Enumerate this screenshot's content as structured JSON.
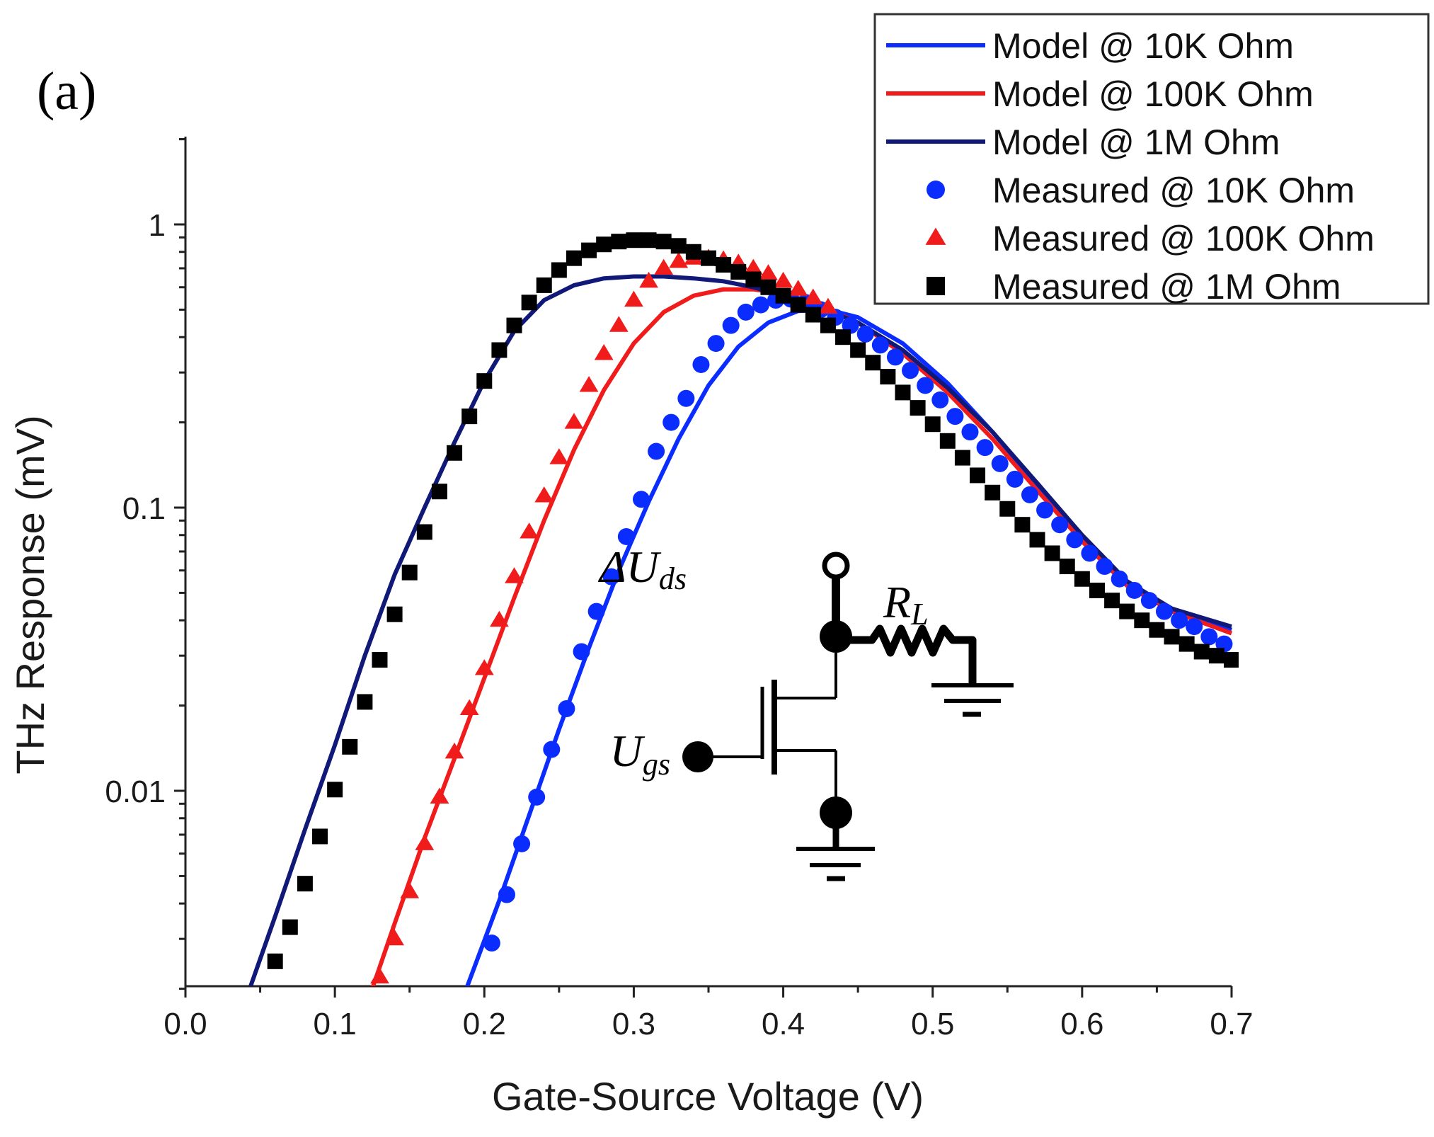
{
  "panel_label": "(a)",
  "chart_data": {
    "type": "line",
    "title": "",
    "xlabel": "Gate-Source Voltage (V)",
    "ylabel": "THz Response (mV)",
    "xlim": [
      0.0,
      0.7
    ],
    "ylim": [
      0.002,
      2.0
    ],
    "yscale": "log",
    "x_ticks": [
      0.0,
      0.1,
      0.2,
      0.3,
      0.4,
      0.5,
      0.6,
      0.7
    ],
    "x_tick_labels": [
      "0.0",
      "0.1",
      "0.2",
      "0.3",
      "0.4",
      "0.5",
      "0.6",
      "0.7"
    ],
    "y_ticks": [
      0.01,
      0.1,
      1
    ],
    "y_tick_labels": [
      "0.01",
      "0.1",
      "1"
    ],
    "grid": false,
    "legend_position": "top-right",
    "series": [
      {
        "name": "Model @ 10K Ohm",
        "kind": "line",
        "color": "#0a2cff",
        "x": [
          0.188,
          0.21,
          0.23,
          0.25,
          0.27,
          0.29,
          0.31,
          0.33,
          0.35,
          0.37,
          0.39,
          0.41,
          0.43,
          0.45,
          0.48,
          0.51,
          0.54,
          0.57,
          0.6,
          0.63,
          0.66,
          0.7
        ],
        "y": [
          0.002,
          0.0041,
          0.0082,
          0.0165,
          0.032,
          0.06,
          0.105,
          0.175,
          0.27,
          0.37,
          0.45,
          0.495,
          0.5,
          0.47,
          0.38,
          0.275,
          0.185,
          0.12,
          0.079,
          0.054,
          0.044,
          0.037
        ]
      },
      {
        "name": "Model @ 100K Ohm",
        "kind": "line",
        "color": "#f01c1c",
        "x": [
          0.125,
          0.14,
          0.16,
          0.18,
          0.2,
          0.22,
          0.24,
          0.26,
          0.28,
          0.3,
          0.32,
          0.34,
          0.36,
          0.38,
          0.4,
          0.42,
          0.45,
          0.48,
          0.51,
          0.54,
          0.57,
          0.6,
          0.63,
          0.66,
          0.7
        ],
        "y": [
          0.002,
          0.0034,
          0.0068,
          0.013,
          0.025,
          0.048,
          0.09,
          0.16,
          0.26,
          0.38,
          0.49,
          0.56,
          0.59,
          0.59,
          0.57,
          0.53,
          0.45,
          0.35,
          0.255,
          0.175,
          0.115,
          0.076,
          0.053,
          0.043,
          0.036
        ]
      },
      {
        "name": "Model @ 1M Ohm",
        "kind": "line",
        "color": "#101878",
        "x": [
          0.043,
          0.06,
          0.08,
          0.1,
          0.12,
          0.14,
          0.16,
          0.18,
          0.2,
          0.22,
          0.24,
          0.26,
          0.28,
          0.3,
          0.32,
          0.34,
          0.36,
          0.38,
          0.4,
          0.42,
          0.45,
          0.48,
          0.51,
          0.54,
          0.57,
          0.6,
          0.63,
          0.66,
          0.7
        ],
        "y": [
          0.002,
          0.0036,
          0.0073,
          0.0145,
          0.03,
          0.058,
          0.1,
          0.17,
          0.28,
          0.42,
          0.54,
          0.61,
          0.645,
          0.655,
          0.655,
          0.645,
          0.63,
          0.6,
          0.56,
          0.52,
          0.45,
          0.36,
          0.265,
          0.185,
          0.122,
          0.08,
          0.055,
          0.044,
          0.038
        ]
      },
      {
        "name": "Measured @ 10K Ohm",
        "kind": "scatter",
        "marker": "circle",
        "color": "#0a2cff",
        "x": [
          0.205,
          0.215,
          0.225,
          0.235,
          0.245,
          0.255,
          0.265,
          0.275,
          0.285,
          0.295,
          0.305,
          0.315,
          0.325,
          0.335,
          0.345,
          0.355,
          0.365,
          0.375,
          0.385,
          0.395,
          0.405,
          0.415,
          0.425,
          0.435,
          0.445,
          0.455,
          0.465,
          0.475,
          0.485,
          0.495,
          0.505,
          0.515,
          0.525,
          0.535,
          0.545,
          0.555,
          0.565,
          0.575,
          0.585,
          0.595,
          0.605,
          0.615,
          0.625,
          0.635,
          0.645,
          0.655,
          0.665,
          0.675,
          0.685,
          0.695
        ],
        "y": [
          0.0029,
          0.0043,
          0.0065,
          0.0095,
          0.014,
          0.0195,
          0.031,
          0.043,
          0.057,
          0.079,
          0.107,
          0.158,
          0.2,
          0.243,
          0.32,
          0.38,
          0.44,
          0.49,
          0.52,
          0.54,
          0.545,
          0.53,
          0.5,
          0.47,
          0.44,
          0.41,
          0.375,
          0.34,
          0.305,
          0.27,
          0.24,
          0.21,
          0.185,
          0.163,
          0.143,
          0.126,
          0.111,
          0.098,
          0.087,
          0.077,
          0.069,
          0.062,
          0.056,
          0.051,
          0.047,
          0.043,
          0.04,
          0.038,
          0.035,
          0.033
        ]
      },
      {
        "name": "Measured @ 100K Ohm",
        "kind": "scatter",
        "marker": "triangle",
        "color": "#f01c1c",
        "x": [
          0.13,
          0.14,
          0.15,
          0.16,
          0.17,
          0.18,
          0.19,
          0.2,
          0.21,
          0.22,
          0.23,
          0.24,
          0.25,
          0.26,
          0.27,
          0.28,
          0.29,
          0.3,
          0.31,
          0.32,
          0.33,
          0.34,
          0.35,
          0.36,
          0.37,
          0.38,
          0.39,
          0.4,
          0.41,
          0.42,
          0.43
        ],
        "y": [
          0.0022,
          0.003,
          0.0044,
          0.0065,
          0.0095,
          0.0137,
          0.0195,
          0.027,
          0.04,
          0.057,
          0.082,
          0.11,
          0.15,
          0.2,
          0.27,
          0.35,
          0.44,
          0.54,
          0.63,
          0.7,
          0.74,
          0.76,
          0.76,
          0.75,
          0.73,
          0.7,
          0.67,
          0.63,
          0.59,
          0.55,
          0.51
        ]
      },
      {
        "name": "Measured @ 1M Ohm",
        "kind": "scatter",
        "marker": "square",
        "color": "#000000",
        "x": [
          0.06,
          0.07,
          0.08,
          0.09,
          0.1,
          0.11,
          0.12,
          0.13,
          0.14,
          0.15,
          0.16,
          0.17,
          0.18,
          0.19,
          0.2,
          0.21,
          0.22,
          0.23,
          0.24,
          0.25,
          0.26,
          0.27,
          0.28,
          0.29,
          0.3,
          0.31,
          0.32,
          0.33,
          0.34,
          0.35,
          0.36,
          0.37,
          0.38,
          0.39,
          0.4,
          0.41,
          0.42,
          0.43,
          0.44,
          0.45,
          0.46,
          0.47,
          0.48,
          0.49,
          0.5,
          0.51,
          0.52,
          0.53,
          0.54,
          0.55,
          0.56,
          0.57,
          0.58,
          0.59,
          0.6,
          0.61,
          0.62,
          0.63,
          0.64,
          0.65,
          0.66,
          0.67,
          0.68,
          0.69,
          0.7
        ],
        "y": [
          0.0025,
          0.0033,
          0.0047,
          0.0069,
          0.0101,
          0.0143,
          0.0206,
          0.029,
          0.042,
          0.059,
          0.082,
          0.114,
          0.156,
          0.21,
          0.28,
          0.36,
          0.44,
          0.53,
          0.61,
          0.69,
          0.76,
          0.81,
          0.85,
          0.87,
          0.88,
          0.88,
          0.87,
          0.84,
          0.8,
          0.76,
          0.72,
          0.68,
          0.64,
          0.6,
          0.56,
          0.52,
          0.48,
          0.44,
          0.4,
          0.36,
          0.325,
          0.29,
          0.255,
          0.225,
          0.197,
          0.172,
          0.15,
          0.13,
          0.113,
          0.099,
          0.087,
          0.077,
          0.069,
          0.062,
          0.056,
          0.051,
          0.047,
          0.043,
          0.04,
          0.037,
          0.035,
          0.033,
          0.031,
          0.03,
          0.029
        ]
      }
    ],
    "inset": {
      "labels": {
        "drain": "ΔU",
        "drain_sub": "ds",
        "load": "R",
        "load_sub": "L",
        "gate": "U",
        "gate_sub": "gs"
      }
    }
  }
}
